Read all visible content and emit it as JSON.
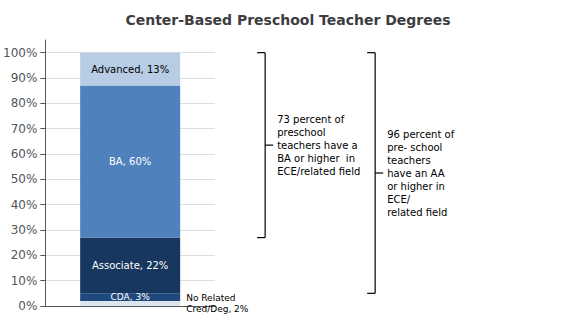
{
  "chart_data": {
    "type": "bar",
    "title": "Center-Based Preschool Teacher Degrees",
    "stacked": true,
    "categories": [
      null
    ],
    "series": [
      {
        "color": "#dce6f1",
        "values": [
          2
        ],
        "value_labels": [
          "No Related\nCred/Deg, 2%"
        ]
      },
      {
        "color": "#1f497d",
        "values": [
          3
        ],
        "value_labels": [
          "CDA, 3%"
        ]
      },
      {
        "color": "#17375e",
        "values": [
          22
        ],
        "value_labels": [
          "Associate, 22%"
        ]
      },
      {
        "color": "#4f81bd",
        "values": [
          60
        ],
        "value_labels": [
          "BA, 60%"
        ]
      },
      {
        "color": "#b8cce4",
        "values": [
          13
        ],
        "value_labels": [
          "Advanced, 13%"
        ]
      }
    ],
    "ylim": [
      0,
      105
    ],
    "yticks": [
      {
        "value": 0,
        "label": "0%"
      },
      {
        "value": 10,
        "label": "10%"
      },
      {
        "value": 20,
        "label": "20%"
      },
      {
        "value": 30,
        "label": "30%"
      },
      {
        "value": 40,
        "label": "40%"
      },
      {
        "value": 50,
        "label": "50%"
      },
      {
        "value": 60,
        "label": "60%"
      },
      {
        "value": 70,
        "label": "70%"
      },
      {
        "value": 80,
        "label": "80%"
      },
      {
        "value": 90,
        "label": "90%"
      },
      {
        "value": 100,
        "label": "100%"
      }
    ],
    "grid": true,
    "data_labels": true,
    "tick_labels": "y",
    "annotations": [
      {
        "text": "73 percent of\npreschool\nteachers have a\nBA or higher  in\nECE/related field",
        "span": [
          27,
          100
        ]
      },
      {
        "text": "96 percent of\npre- school\nteachers\nhave an AA\nor higher in\nECE/\nrelated field",
        "span": [
          5,
          100
        ]
      }
    ]
  }
}
